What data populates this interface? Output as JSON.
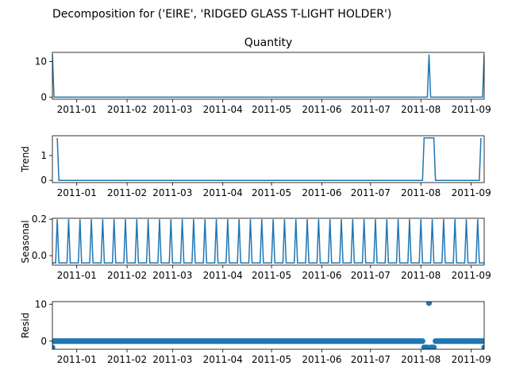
{
  "figure": {
    "suptitle": "Decomposition for ('EIRE', 'RIDGED GLASS T-LIGHT HOLDER')",
    "line_color": "#1f77b4"
  },
  "chart_data": [
    {
      "type": "line",
      "title": "Quantity",
      "ylabel": "",
      "xlim": [
        "2010-12-17",
        "2011-09-09"
      ],
      "ylim": [
        -0.6,
        12.6
      ],
      "yticks": [
        0,
        10
      ],
      "xtick_labels": [
        "2011-01",
        "2011-02",
        "2011-03",
        "2011-04",
        "2011-05",
        "2011-06",
        "2011-07",
        "2011-08",
        "2011-09"
      ],
      "x": [
        "2010-12-17",
        "2010-12-18",
        "2011-08-05",
        "2011-08-06",
        "2011-08-07",
        "2011-09-08",
        "2011-09-09"
      ],
      "values": [
        12,
        0,
        0,
        12,
        0,
        0,
        12
      ]
    },
    {
      "type": "line",
      "title": "",
      "ylabel": "Trend",
      "xlim": [
        "2010-12-17",
        "2011-09-09"
      ],
      "ylim": [
        -0.09,
        1.8
      ],
      "yticks": [
        0,
        1
      ],
      "xtick_labels": [
        "2011-01",
        "2011-02",
        "2011-03",
        "2011-04",
        "2011-05",
        "2011-06",
        "2011-07",
        "2011-08",
        "2011-09"
      ],
      "x": [
        "2010-12-20",
        "2010-12-21",
        "2011-08-02",
        "2011-08-03",
        "2011-08-09",
        "2011-08-10",
        "2011-09-06",
        "2011-09-07"
      ],
      "values": [
        1.71,
        0,
        0,
        1.71,
        1.71,
        0,
        0,
        1.71
      ]
    },
    {
      "type": "line",
      "title": "",
      "ylabel": "Seasonal",
      "xlim": [
        "2010-12-17",
        "2011-09-09"
      ],
      "ylim": [
        -0.052,
        0.205
      ],
      "yticks": [
        0.0,
        0.2
      ],
      "ytick_labels": [
        "0.0",
        "0.2"
      ],
      "xtick_labels": [
        "2011-01",
        "2011-02",
        "2011-03",
        "2011-04",
        "2011-05",
        "2011-06",
        "2011-07",
        "2011-08",
        "2011-09"
      ],
      "period_days": 7,
      "peak_start": "2010-12-20",
      "low_value": -0.04,
      "peak_value": 0.2
    },
    {
      "type": "scatter",
      "title": "",
      "ylabel": "Resid",
      "xlim": [
        "2010-12-17",
        "2011-09-09"
      ],
      "ylim": [
        -2.2,
        10.7
      ],
      "yticks": [
        0,
        10
      ],
      "xtick_labels": [
        "2011-01",
        "2011-02",
        "2011-03",
        "2011-04",
        "2011-05",
        "2011-06",
        "2011-07",
        "2011-08",
        "2011-09"
      ],
      "start": "2010-12-17",
      "end": "2011-09-09",
      "base_value": 0,
      "special_points": [
        {
          "x": "2010-12-17",
          "y": -1.7
        },
        {
          "x": "2011-08-03",
          "y": -1.7
        },
        {
          "x": "2011-08-04",
          "y": -1.7
        },
        {
          "x": "2011-08-05",
          "y": -1.7
        },
        {
          "x": "2011-08-06",
          "y": 10.3
        },
        {
          "x": "2011-08-07",
          "y": -1.7
        },
        {
          "x": "2011-08-08",
          "y": -1.7
        },
        {
          "x": "2011-08-09",
          "y": -1.7
        },
        {
          "x": "2011-09-09",
          "y": -1.7
        }
      ]
    }
  ]
}
